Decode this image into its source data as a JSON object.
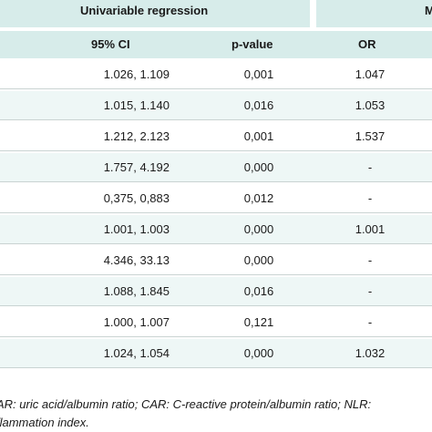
{
  "header": {
    "group1": "Univariable regression",
    "group2": "M"
  },
  "columns": {
    "ci": "95% CI",
    "pvalue": "p-value",
    "or": "OR"
  },
  "rows": [
    {
      "ci": "1.026, 1.109",
      "p": "0,001",
      "or": "1.047"
    },
    {
      "ci": "1.015, 1.140",
      "p": "0,016",
      "or": "1.053"
    },
    {
      "ci": "1.212, 2.123",
      "p": "0,001",
      "or": "1.537"
    },
    {
      "ci": "1.757, 4.192",
      "p": "0,000",
      "or": "-"
    },
    {
      "ci": "0,375, 0,883",
      "p": "0,012",
      "or": "-"
    },
    {
      "ci": "1.001, 1.003",
      "p": "0,000",
      "or": "1.001"
    },
    {
      "ci": "4.346, 33.13",
      "p": "0,000",
      "or": "-"
    },
    {
      "ci": "1.088, 1.845",
      "p": "0,016",
      "or": "-"
    },
    {
      "ci": "1.000, 1.007",
      "p": "0,121",
      "or": "-"
    },
    {
      "ci": "1.024, 1.054",
      "p": "0,000",
      "or": "1.032"
    }
  ],
  "footnote": {
    "line1": "AR: uric acid/albumin ratio; CAR: C-reactive protein/albumin ratio; NLR:",
    "line2": "flammation index."
  }
}
